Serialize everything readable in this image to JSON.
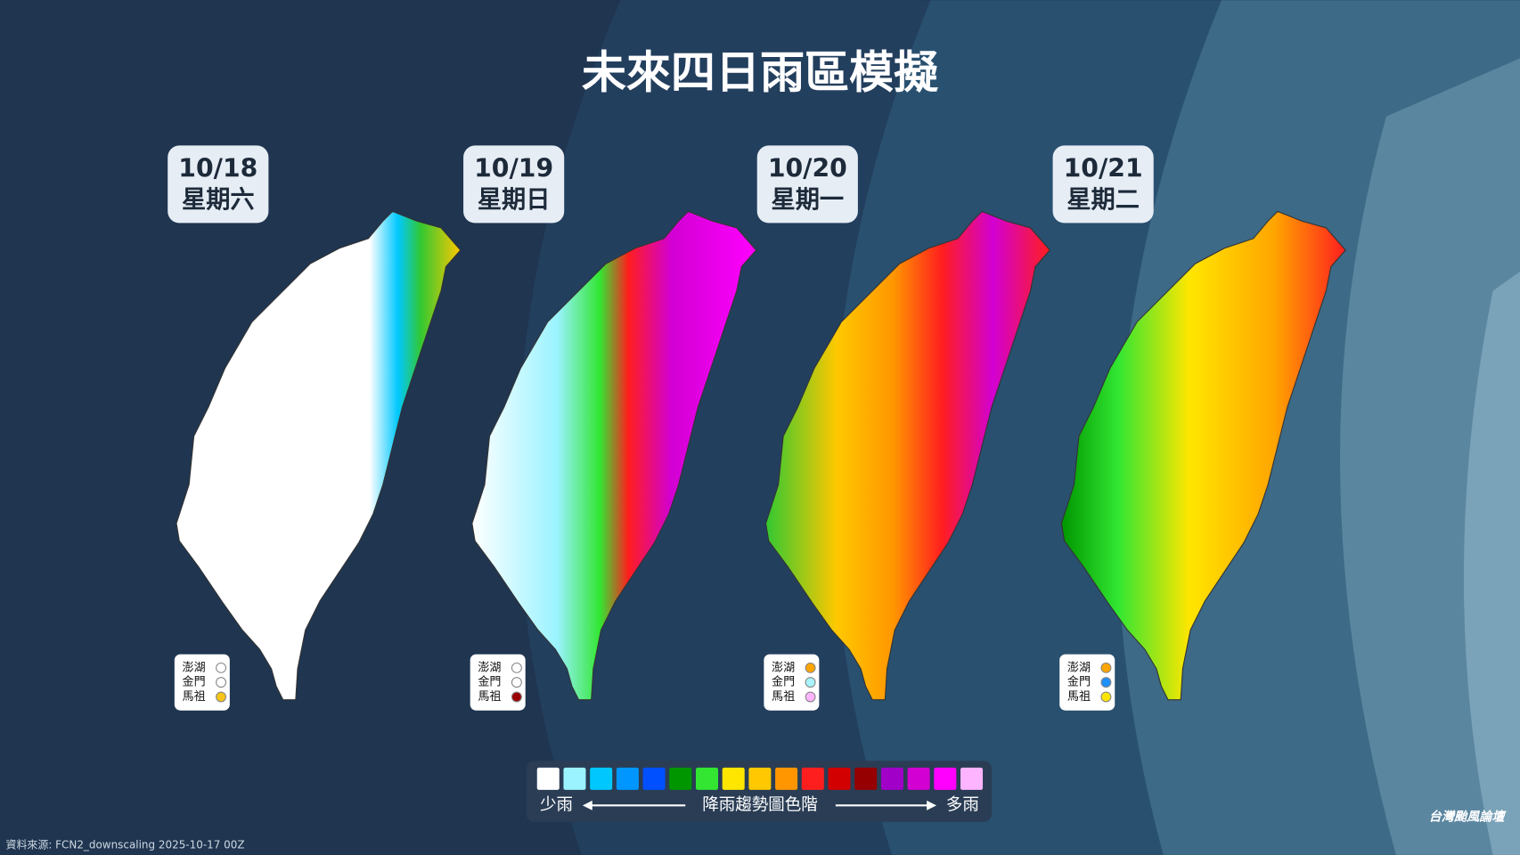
{
  "title": "未來四日雨區模擬",
  "panels": [
    {
      "date": "10/18",
      "weekday": "星期六",
      "islands": [
        {
          "name": "澎湖",
          "color": "#ffffff"
        },
        {
          "name": "金門",
          "color": "#ffffff"
        },
        {
          "name": "馬祖",
          "color": "#f5c518"
        }
      ]
    },
    {
      "date": "10/19",
      "weekday": "星期日",
      "islands": [
        {
          "name": "澎湖",
          "color": "#ffffff"
        },
        {
          "name": "金門",
          "color": "#ffffff"
        },
        {
          "name": "馬祖",
          "color": "#9a0000"
        }
      ]
    },
    {
      "date": "10/20",
      "weekday": "星期一",
      "islands": [
        {
          "name": "澎湖",
          "color": "#ffa500"
        },
        {
          "name": "金門",
          "color": "#a8f4ff"
        },
        {
          "name": "馬祖",
          "color": "#ffb4ff"
        }
      ]
    },
    {
      "date": "10/21",
      "weekday": "星期二",
      "islands": [
        {
          "name": "澎湖",
          "color": "#ffa500"
        },
        {
          "name": "金門",
          "color": "#1e90ff"
        },
        {
          "name": "馬祖",
          "color": "#ffe600"
        }
      ]
    }
  ],
  "legend": {
    "colors": [
      "#ffffff",
      "#9af3ff",
      "#00c8ff",
      "#0096ff",
      "#0050ff",
      "#009600",
      "#32e632",
      "#ffe600",
      "#ffc800",
      "#ff9600",
      "#ff1e1e",
      "#d20000",
      "#960000",
      "#a000c8",
      "#d200d2",
      "#ff00ff",
      "#ffb4ff"
    ],
    "low": "少雨",
    "label": "降雨趨勢圖色階",
    "high": "多雨"
  },
  "source": "資料來源: FCN2_downscaling 2025-10-17 00Z",
  "logo": "台灣颱風論壇"
}
